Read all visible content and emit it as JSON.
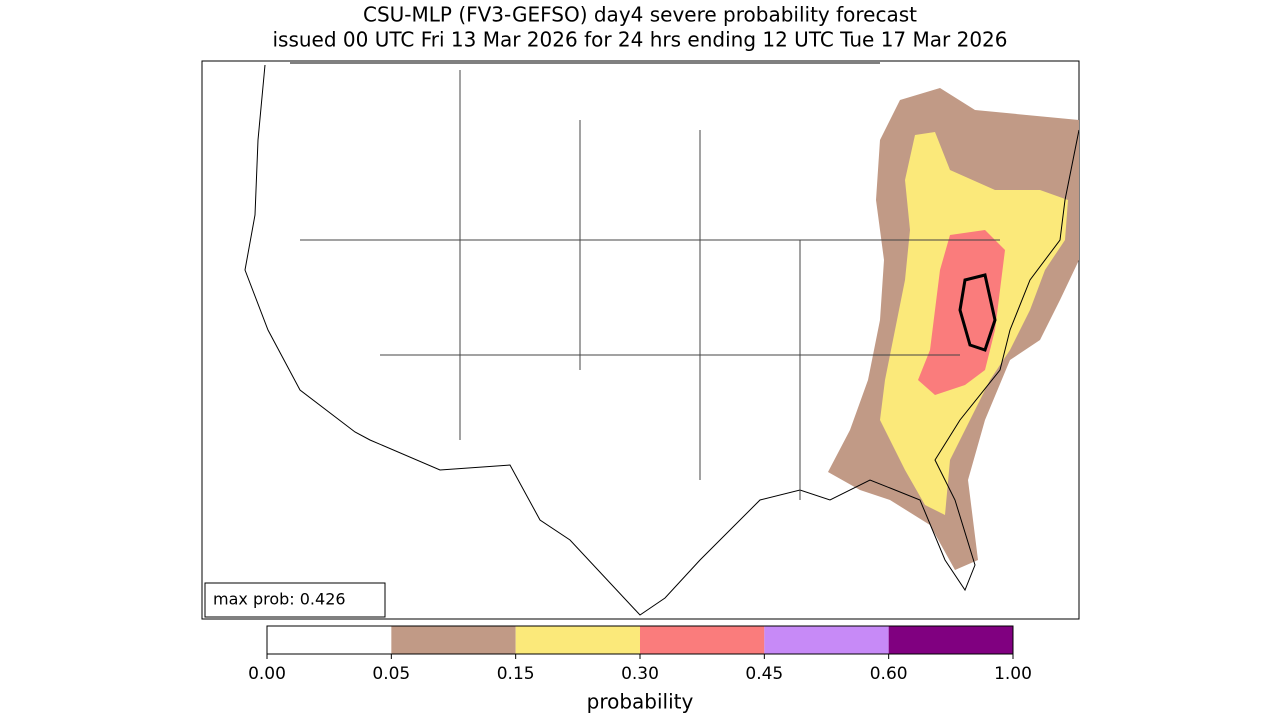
{
  "title": "CSU-MLP (FV3-GEFSO) day4 severe probability forecast",
  "subtitle": "issued 00 UTC Fri 13 Mar 2026 for 24 hrs ending 12 UTC Tue 17 Mar 2026",
  "annotation": "max prob: 0.426",
  "colorbar": {
    "label": "probability",
    "ticks": [
      {
        "value": 0,
        "label": "0.00"
      },
      {
        "value": 0.05,
        "label": "0.05"
      },
      {
        "value": 0.15,
        "label": "0.15"
      },
      {
        "value": 0.3,
        "label": "0.30"
      },
      {
        "value": 0.45,
        "label": "0.45"
      },
      {
        "value": 0.6,
        "label": "0.60"
      },
      {
        "value": 1,
        "label": "1.00"
      }
    ],
    "colors": [
      "#ffffff",
      "#c19a86",
      "#fbe97a",
      "#fa7c7c",
      "#c78af7",
      "#800080"
    ]
  }
}
